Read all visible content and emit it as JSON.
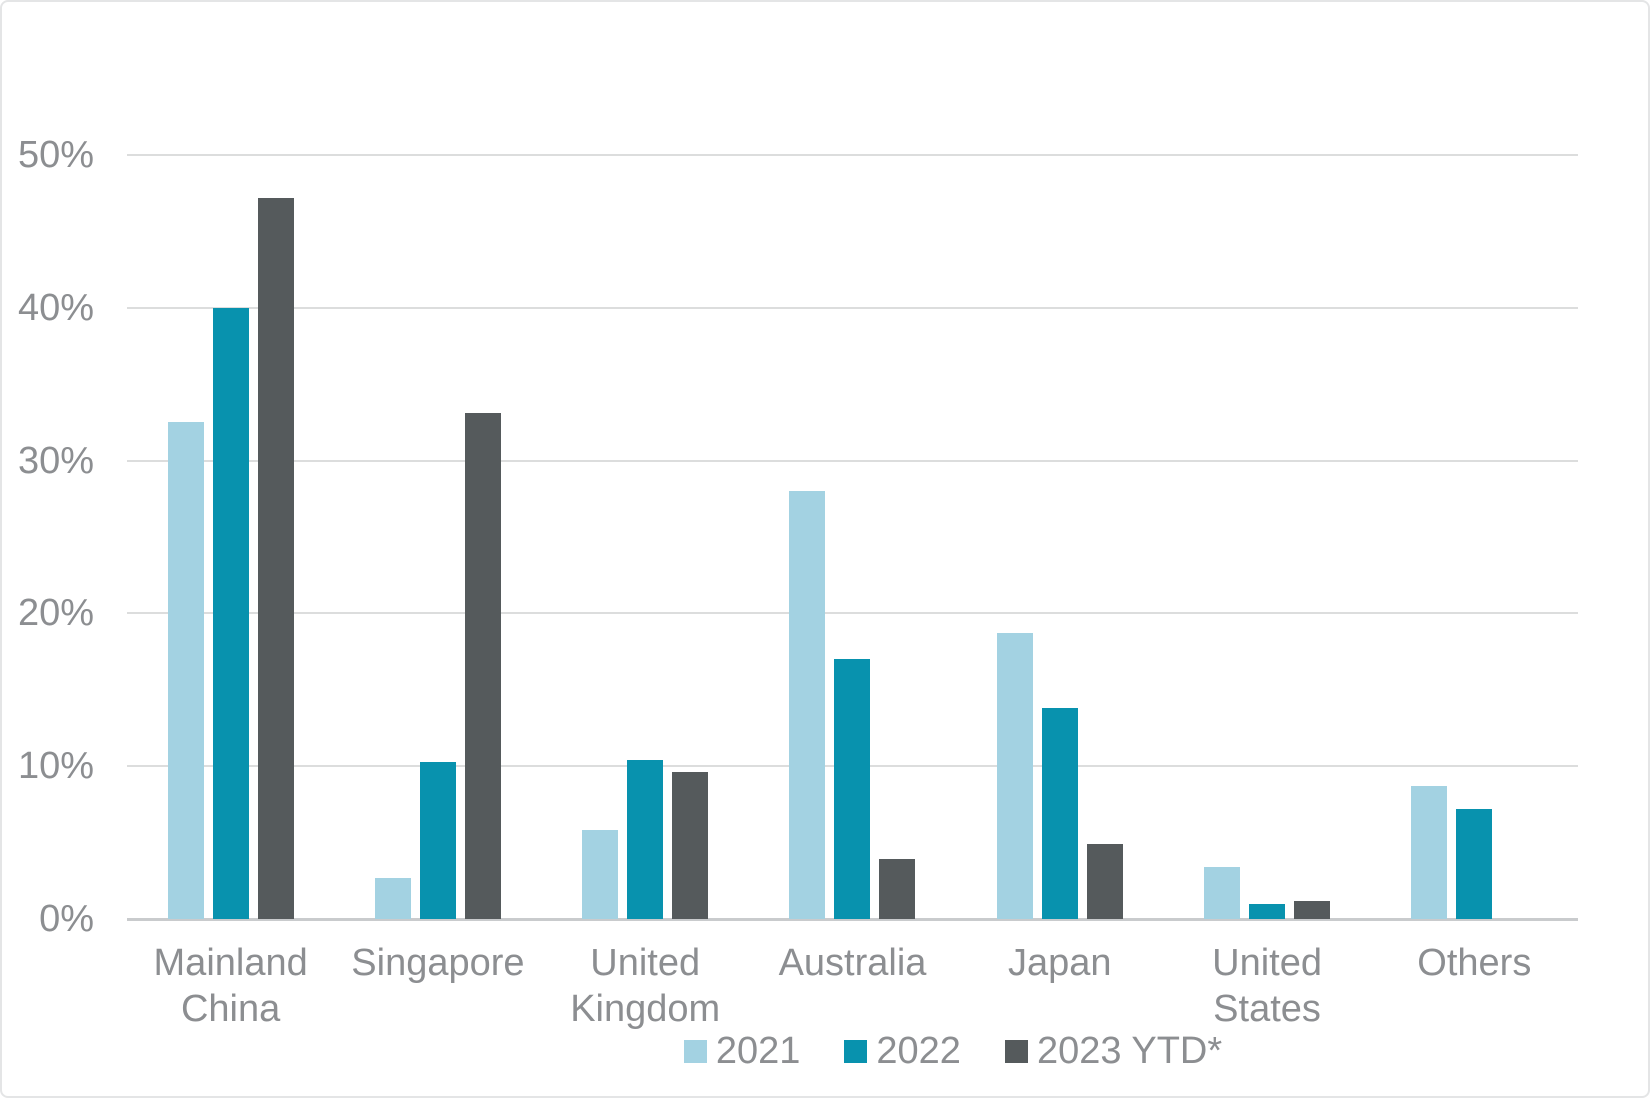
{
  "chart_data": {
    "type": "bar",
    "title": "",
    "xlabel": "",
    "ylabel": "",
    "categories": [
      "Mainland China",
      "Singapore",
      "United Kingdom",
      "Australia",
      "Japan",
      "United States",
      "Others"
    ],
    "series": [
      {
        "name": "2021",
        "color": "#a3d2e2",
        "values": [
          32.5,
          2.7,
          5.8,
          28.0,
          18.7,
          3.4,
          8.7
        ]
      },
      {
        "name": "2022",
        "color": "#0892ae",
        "values": [
          40.0,
          10.3,
          10.4,
          17.0,
          13.8,
          1.0,
          7.2
        ]
      },
      {
        "name": "2023 YTD*",
        "color": "#555a5c",
        "values": [
          47.2,
          33.1,
          9.6,
          3.9,
          4.9,
          1.2,
          0
        ]
      }
    ],
    "ylim": [
      0,
      50
    ],
    "yticks": [
      0,
      10,
      20,
      30,
      40,
      50
    ],
    "ytick_labels": [
      "0%",
      "10%",
      "20%",
      "30%",
      "40%",
      "50%"
    ],
    "grid": true,
    "legend_position": "bottom"
  },
  "colors": {
    "gridline": "#dcdddd",
    "axis_line": "#c9cbcd",
    "text": "#8c8e91",
    "frame_border": "#e4e5e6",
    "background": "#ffffff"
  }
}
